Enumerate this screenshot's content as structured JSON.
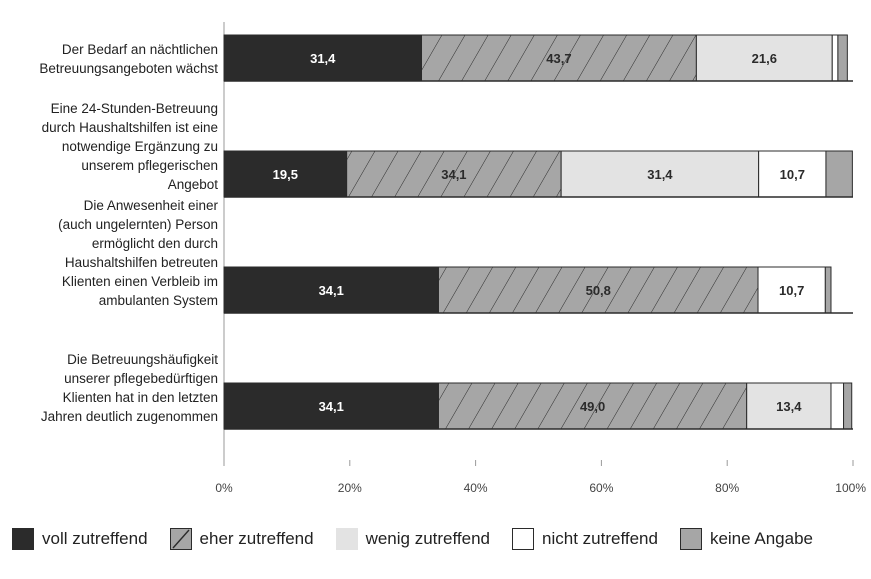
{
  "chart_data": {
    "type": "bar",
    "orientation": "horizontal",
    "stacked": true,
    "categories": [
      "Der Bedarf an nächtlichen Betreuungsangeboten wächst",
      "Eine 24-Stunden-Betreuung durch Haushaltshilfen ist eine notwendige Ergänzung zu unserem pflegerischen Angebot",
      "Die Anwesenheit einer (auch ungelernten) Person ermöglicht den durch Haushaltshilfen betreuten Klienten einen Verbleib im ambulanten System",
      "Die Betreuungshäufigkeit unserer pflegebedürftigen Klienten hat in den letzten Jahren deutlich zugenommen"
    ],
    "category_lines": [
      [
        "Der Bedarf an nächtlichen",
        "Betreuungsangeboten wächst"
      ],
      [
        "Eine 24-Stunden-Betreuung",
        "durch Haushaltshilfen ist eine",
        "notwendige Ergänzung zu",
        "unserem pflegerischen",
        "Angebot"
      ],
      [
        "Die Anwesenheit einer",
        "(auch ungelernten) Person",
        "ermöglicht den durch",
        "Haushaltshilfen betreuten",
        "Klienten einen Verbleib im",
        "ambulanten System"
      ],
      [
        "Die Betreuungshäufigkeit",
        "unserer pflegebedürftigen",
        "Klienten hat in den letzten",
        "Jahren deutlich zugenommen"
      ]
    ],
    "series": [
      {
        "name": "voll zutreffend",
        "color": "#2b2b2b",
        "pattern": "solid",
        "values": [
          31.4,
          19.5,
          34.1,
          34.1
        ],
        "labels": [
          "31,4",
          "19,5",
          "34,1",
          "34,1"
        ],
        "label_color": "#ffffff"
      },
      {
        "name": "eher zutreffend",
        "color": "#a6a6a6",
        "pattern": "hatch",
        "values": [
          43.7,
          34.1,
          50.8,
          49.0
        ],
        "labels": [
          "43,7",
          "34,1",
          "50,8",
          "49,0"
        ],
        "label_color": "#2b2b2b"
      },
      {
        "name": "wenig zutreffend",
        "color": "#e3e3e3",
        "pattern": "solid",
        "values": [
          21.6,
          31.4,
          0,
          13.4
        ],
        "labels": [
          "21,6",
          "31,4",
          "",
          "13,4"
        ],
        "label_color": "#2b2b2b"
      },
      {
        "name": "nicht zutreffend",
        "color": "#ffffff",
        "pattern": "solid",
        "values": [
          0.9,
          10.7,
          10.7,
          2.0
        ],
        "labels": [
          "",
          "10,7",
          "10,7",
          ""
        ],
        "label_color": "#2b2b2b"
      },
      {
        "name": "keine Angabe",
        "color": "#a6a6a6",
        "pattern": "solid",
        "values": [
          1.5,
          4.2,
          0.9,
          1.3
        ],
        "labels": [
          "",
          "",
          "",
          ""
        ],
        "label_color": "#2b2b2b"
      }
    ],
    "xlim": [
      0,
      100
    ],
    "xticks": [
      0,
      20,
      40,
      60,
      80,
      100
    ],
    "xtick_labels": [
      "0%",
      "20%",
      "40%",
      "60%",
      "80%",
      "100%"
    ],
    "xlabel": "",
    "ylabel": "",
    "title": "",
    "grid": false,
    "legend": "bottom"
  }
}
